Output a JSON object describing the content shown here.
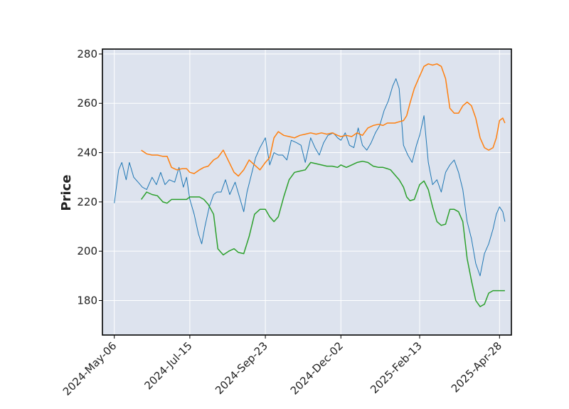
{
  "chart_data": {
    "type": "line",
    "title": "",
    "xlabel": "",
    "ylabel": "Price",
    "ylim": [
      166,
      282
    ],
    "xlim": [
      "2024-04-25",
      "2025-05-09"
    ],
    "yticks": [
      180,
      200,
      220,
      240,
      260,
      280
    ],
    "xtick_labels": [
      "2024-May-06",
      "2024-Jul-15",
      "2024-Sep-23",
      "2024-Dec-02",
      "2025-Feb-13",
      "2025-Apr-28"
    ],
    "xtick_dates": [
      "2024-05-06",
      "2024-07-15",
      "2024-09-23",
      "2024-12-02",
      "2025-02-13",
      "2025-04-28"
    ],
    "grid": true,
    "colors": {
      "background": "#dde3ee",
      "grid": "#ffffff",
      "price": "#1f77b4",
      "upper": "#ff7f0e",
      "lower": "#2ca02c"
    },
    "series": [
      {
        "color": "#1f77b4",
        "x": [
          "2024-05-06",
          "2024-05-10",
          "2024-05-13",
          "2024-05-17",
          "2024-05-20",
          "2024-05-24",
          "2024-05-28",
          "2024-06-01",
          "2024-06-05",
          "2024-06-10",
          "2024-06-14",
          "2024-06-18",
          "2024-06-22",
          "2024-06-26",
          "2024-07-01",
          "2024-07-05",
          "2024-07-09",
          "2024-07-12",
          "2024-07-15",
          "2024-07-19",
          "2024-07-23",
          "2024-07-26",
          "2024-07-29",
          "2024-08-02",
          "2024-08-06",
          "2024-08-09",
          "2024-08-13",
          "2024-08-17",
          "2024-08-21",
          "2024-08-26",
          "2024-08-30",
          "2024-09-03",
          "2024-09-06",
          "2024-09-10",
          "2024-09-14",
          "2024-09-18",
          "2024-09-23",
          "2024-09-27",
          "2024-10-01",
          "2024-10-05",
          "2024-10-09",
          "2024-10-13",
          "2024-10-17",
          "2024-10-22",
          "2024-10-26",
          "2024-10-30",
          "2024-11-04",
          "2024-11-08",
          "2024-11-12",
          "2024-11-16",
          "2024-11-20",
          "2024-11-25",
          "2024-11-29",
          "2024-12-02",
          "2024-12-06",
          "2024-12-10",
          "2024-12-14",
          "2024-12-18",
          "2024-12-22",
          "2024-12-26",
          "2024-12-30",
          "2025-01-03",
          "2025-01-07",
          "2025-01-11",
          "2025-01-15",
          "2025-01-19",
          "2025-01-22",
          "2025-01-25",
          "2025-01-29",
          "2025-02-02",
          "2025-02-06",
          "2025-02-10",
          "2025-02-13",
          "2025-02-17",
          "2025-02-21",
          "2025-02-25",
          "2025-03-01",
          "2025-03-05",
          "2025-03-09",
          "2025-03-13",
          "2025-03-17",
          "2025-03-21",
          "2025-03-25",
          "2025-03-29",
          "2025-04-02",
          "2025-04-06",
          "2025-04-10",
          "2025-04-14",
          "2025-04-18",
          "2025-04-22",
          "2025-04-25",
          "2025-04-28",
          "2025-05-01",
          "2025-05-03"
        ],
        "values": [
          219.5,
          233,
          236,
          229,
          236,
          230,
          228,
          226,
          225,
          230,
          227,
          232,
          227,
          229,
          228,
          234,
          226,
          230,
          221,
          215,
          207,
          203,
          210,
          218,
          223,
          224,
          224,
          229,
          223,
          228,
          222,
          216,
          224,
          231,
          238,
          242,
          246,
          235,
          240,
          239,
          239,
          237,
          245,
          244,
          243,
          236,
          246,
          242,
          239,
          244,
          247,
          248,
          246,
          245,
          248,
          243,
          242,
          250,
          243,
          241,
          244,
          248,
          251,
          257,
          261,
          267,
          270,
          266,
          243,
          239,
          236,
          243,
          247,
          255,
          236,
          227,
          229,
          224,
          232,
          235,
          237,
          232,
          225,
          212,
          205,
          195,
          190,
          199,
          203,
          209,
          215,
          218,
          216,
          212
        ],
        "name": ""
      },
      {
        "color": "#ff7f0e",
        "x": [
          "2024-05-31",
          "2024-06-05",
          "2024-06-10",
          "2024-06-15",
          "2024-06-20",
          "2024-06-24",
          "2024-06-28",
          "2024-07-03",
          "2024-07-08",
          "2024-07-12",
          "2024-07-15",
          "2024-07-19",
          "2024-07-24",
          "2024-07-28",
          "2024-08-01",
          "2024-08-06",
          "2024-08-10",
          "2024-08-15",
          "2024-08-20",
          "2024-08-25",
          "2024-08-29",
          "2024-09-03",
          "2024-09-08",
          "2024-09-13",
          "2024-09-18",
          "2024-09-23",
          "2024-09-27",
          "2024-10-01",
          "2024-10-05",
          "2024-10-10",
          "2024-10-15",
          "2024-10-20",
          "2024-10-25",
          "2024-10-30",
          "2024-11-04",
          "2024-11-09",
          "2024-11-14",
          "2024-11-19",
          "2024-11-24",
          "2024-11-29",
          "2024-12-02",
          "2024-12-07",
          "2024-12-12",
          "2024-12-17",
          "2024-12-22",
          "2024-12-27",
          "2025-01-01",
          "2025-01-06",
          "2025-01-10",
          "2025-01-14",
          "2025-01-17",
          "2025-01-21",
          "2025-01-25",
          "2025-01-29",
          "2025-02-01",
          "2025-02-04",
          "2025-02-08",
          "2025-02-13",
          "2025-02-17",
          "2025-02-21",
          "2025-02-25",
          "2025-03-01",
          "2025-03-05",
          "2025-03-09",
          "2025-03-13",
          "2025-03-17",
          "2025-03-21",
          "2025-03-25",
          "2025-03-29",
          "2025-04-02",
          "2025-04-06",
          "2025-04-10",
          "2025-04-14",
          "2025-04-18",
          "2025-04-22",
          "2025-04-25",
          "2025-04-28",
          "2025-05-01",
          "2025-05-03"
        ],
        "values": [
          241,
          239.5,
          239,
          239,
          238.5,
          238.5,
          234,
          233,
          233.5,
          233.5,
          232,
          231.5,
          233,
          234,
          234.5,
          237,
          238,
          241,
          236.5,
          232,
          230.5,
          233,
          237,
          235,
          233,
          236,
          238,
          246,
          248.5,
          247,
          246.5,
          246,
          247,
          247.5,
          248,
          247.5,
          248,
          247.5,
          248,
          247,
          246.5,
          247,
          246.5,
          248,
          247,
          250,
          251,
          251.5,
          251,
          252,
          252,
          252,
          252.5,
          253,
          255,
          260,
          266,
          271,
          275,
          276,
          275.5,
          276,
          275,
          270,
          258,
          256,
          256,
          259,
          260.5,
          259,
          254,
          246,
          242,
          241,
          242,
          246,
          253,
          254,
          252
        ],
        "name": ""
      },
      {
        "color": "#2ca02c",
        "x": [
          "2024-05-31",
          "2024-06-05",
          "2024-06-10",
          "2024-06-15",
          "2024-06-20",
          "2024-06-24",
          "2024-06-28",
          "2024-07-03",
          "2024-07-08",
          "2024-07-12",
          "2024-07-15",
          "2024-07-19",
          "2024-07-24",
          "2024-07-28",
          "2024-08-01",
          "2024-08-06",
          "2024-08-10",
          "2024-08-15",
          "2024-08-20",
          "2024-08-25",
          "2024-08-29",
          "2024-09-03",
          "2024-09-08",
          "2024-09-13",
          "2024-09-18",
          "2024-09-23",
          "2024-09-27",
          "2024-10-01",
          "2024-10-05",
          "2024-10-10",
          "2024-10-15",
          "2024-10-20",
          "2024-10-25",
          "2024-10-30",
          "2024-11-04",
          "2024-11-09",
          "2024-11-14",
          "2024-11-19",
          "2024-11-24",
          "2024-11-29",
          "2024-12-02",
          "2024-12-07",
          "2024-12-12",
          "2024-12-17",
          "2024-12-22",
          "2024-12-27",
          "2025-01-01",
          "2025-01-06",
          "2025-01-10",
          "2025-01-14",
          "2025-01-17",
          "2025-01-21",
          "2025-01-25",
          "2025-01-29",
          "2025-02-01",
          "2025-02-04",
          "2025-02-08",
          "2025-02-13",
          "2025-02-17",
          "2025-02-21",
          "2025-02-25",
          "2025-03-01",
          "2025-03-05",
          "2025-03-09",
          "2025-03-13",
          "2025-03-17",
          "2025-03-21",
          "2025-03-25",
          "2025-03-29",
          "2025-04-02",
          "2025-04-06",
          "2025-04-10",
          "2025-04-14",
          "2025-04-18",
          "2025-04-22",
          "2025-04-25",
          "2025-04-28",
          "2025-05-01",
          "2025-05-03"
        ],
        "values": [
          221,
          224,
          223,
          222.5,
          220,
          219.5,
          221,
          221,
          221,
          221,
          222,
          222,
          222,
          221,
          219,
          215,
          201,
          198.5,
          200,
          201,
          199.5,
          199,
          206,
          215,
          217,
          217,
          214,
          212,
          214,
          222,
          229,
          232,
          232.5,
          233,
          236,
          235.5,
          235,
          234.5,
          234.5,
          234,
          235,
          234,
          235,
          236,
          236.5,
          236,
          234.5,
          234,
          234,
          233.5,
          233,
          231,
          229,
          226,
          222,
          220.5,
          221,
          227,
          228.5,
          225,
          218,
          212,
          210.5,
          211,
          217,
          217,
          216,
          212,
          197,
          188,
          180,
          177.5,
          178.5,
          183,
          184,
          184,
          184,
          184,
          184
        ],
        "name": ""
      }
    ]
  }
}
